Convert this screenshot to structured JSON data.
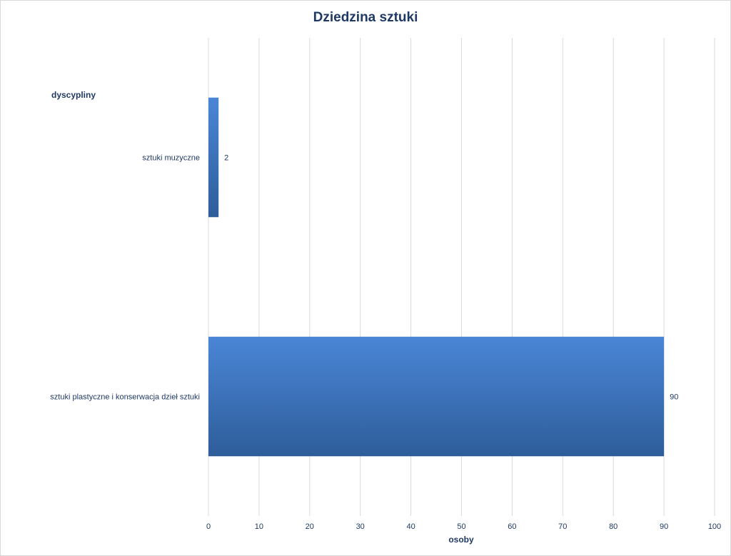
{
  "chart_data": {
    "type": "bar",
    "orientation": "horizontal",
    "title": "Dziedzina  sztuki",
    "ylabel": "dyscypliny",
    "xlabel": "osoby",
    "categories": [
      "sztuki muzyczne",
      "sztuki plastyczne i konserwacja dzieł sztuki"
    ],
    "values": [
      2,
      90
    ],
    "data_labels": [
      "2",
      "90"
    ],
    "xlim": [
      0,
      100
    ],
    "xticks": [
      0,
      10,
      20,
      30,
      40,
      50,
      60,
      70,
      80,
      90,
      100
    ],
    "grid": true,
    "legend": "none",
    "colors": {
      "bar_top": "#4a86d6",
      "bar_bottom": "#2e5d9a",
      "grid": "#d9d9d9",
      "text": "#1f3864"
    }
  }
}
